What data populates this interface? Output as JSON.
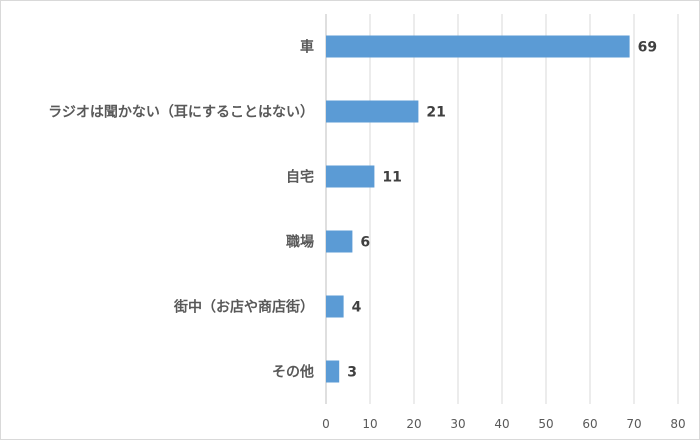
{
  "chart_data": {
    "type": "bar",
    "orientation": "horizontal",
    "categories": [
      "車",
      "ラジオは聞かない（耳にすることはない）",
      "自宅",
      "職場",
      "街中（お店や商店街）",
      "その他"
    ],
    "values": [
      69,
      21,
      11,
      6,
      4,
      3
    ],
    "data_labels": [
      "69",
      "21",
      "11",
      "6",
      "4",
      "3"
    ],
    "title": "",
    "xlabel": "",
    "ylabel": "",
    "xlim": [
      0,
      80
    ],
    "x_ticks": [
      0,
      10,
      20,
      30,
      40,
      50,
      60,
      70,
      80
    ],
    "x_tick_labels": [
      "0",
      "10",
      "20",
      "30",
      "40",
      "50",
      "60",
      "70",
      "80"
    ],
    "grid": "vertical",
    "legend": "none",
    "colors": {
      "bar": "#5b9bd5",
      "grid": "#d9d9d9",
      "text": "#595959"
    }
  }
}
